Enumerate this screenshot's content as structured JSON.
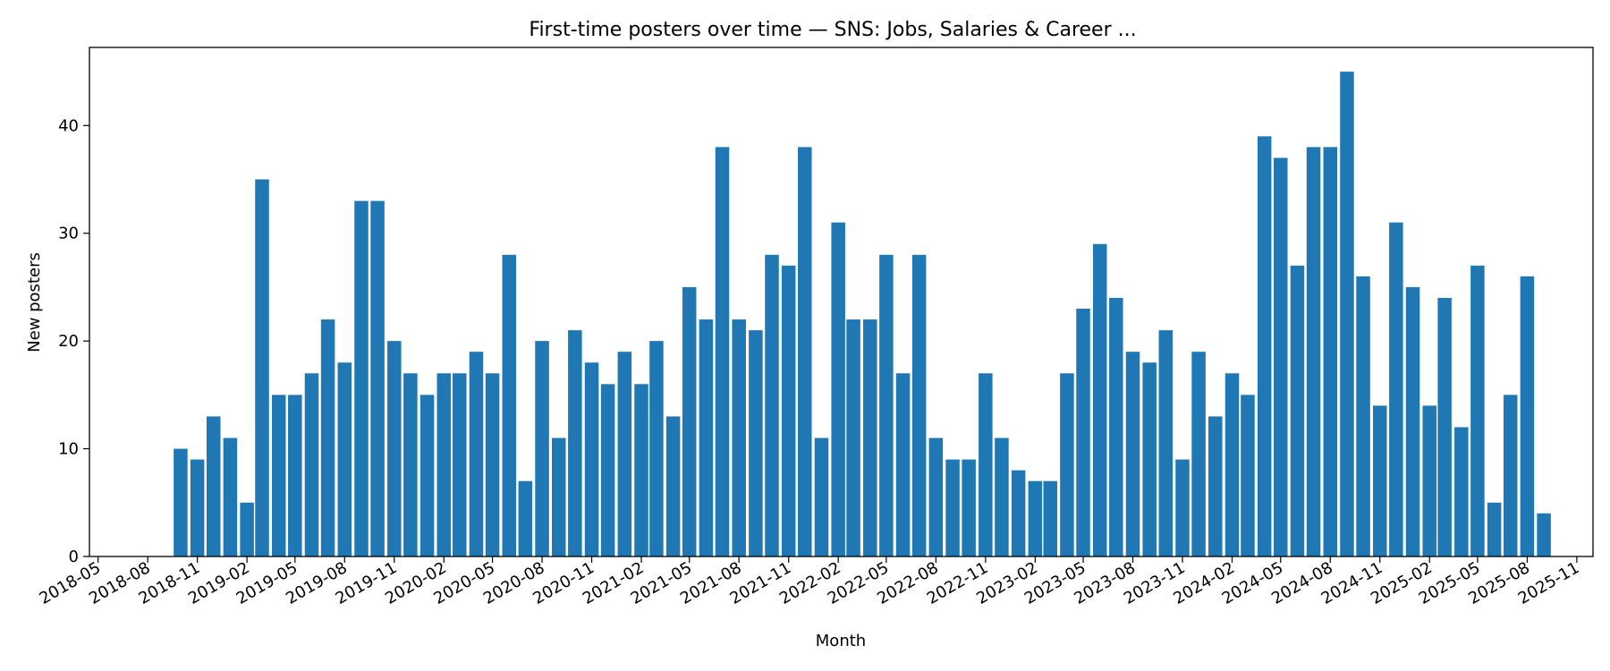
{
  "chart_data": {
    "type": "bar",
    "title": "First-time posters over time — SNS: Jobs, Salaries & Career ...",
    "xlabel": "Month",
    "ylabel": "New posters",
    "bar_color": "#1f77b4",
    "grid": false,
    "legend": "none",
    "ylim": [
      0,
      47.25
    ],
    "y_ticks": [
      0,
      10,
      20,
      30,
      40
    ],
    "xlim": [
      "2018-04-15",
      "2025-12-01"
    ],
    "x_ticks": [
      "2018-05",
      "2018-08",
      "2018-11",
      "2019-02",
      "2019-05",
      "2019-08",
      "2019-11",
      "2020-02",
      "2020-05",
      "2020-08",
      "2020-11",
      "2021-02",
      "2021-05",
      "2021-08",
      "2021-11",
      "2022-02",
      "2022-05",
      "2022-08",
      "2022-11",
      "2023-02",
      "2023-05",
      "2023-08",
      "2023-11",
      "2024-02",
      "2024-05",
      "2024-08",
      "2024-11",
      "2025-02",
      "2025-05",
      "2025-08",
      "2025-11"
    ],
    "start_month": "2018-10",
    "values": [
      10,
      9,
      13,
      11,
      5,
      35,
      15,
      15,
      17,
      22,
      18,
      33,
      33,
      20,
      17,
      15,
      17,
      17,
      19,
      17,
      28,
      7,
      20,
      11,
      21,
      18,
      16,
      19,
      16,
      20,
      13,
      25,
      22,
      38,
      22,
      21,
      28,
      27,
      38,
      11,
      31,
      22,
      22,
      28,
      17,
      28,
      11,
      9,
      9,
      17,
      11,
      8,
      7,
      7,
      17,
      23,
      29,
      24,
      19,
      18,
      21,
      9,
      19,
      13,
      17,
      15,
      39,
      37,
      27,
      38,
      38,
      45,
      26,
      14,
      31,
      25,
      14,
      24,
      12,
      27,
      5,
      15,
      26,
      4
    ]
  }
}
